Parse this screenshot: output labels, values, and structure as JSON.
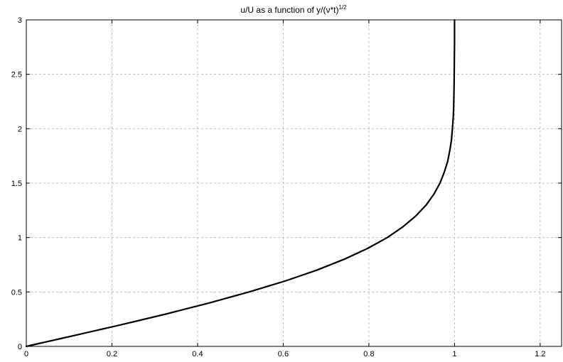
{
  "chart_data": {
    "type": "line",
    "title_main": "u/U as a function of y/(ν*t)",
    "title_sup": "1/2",
    "xlabel": "",
    "ylabel": "",
    "xlim": [
      0,
      1.25
    ],
    "ylim": [
      0,
      3
    ],
    "xticks": [
      0,
      0.2,
      0.4,
      0.6,
      0.8,
      1,
      1.2
    ],
    "xtick_labels": [
      "0",
      "0.2",
      "0.4",
      "0.6",
      "0.8",
      "1",
      "1.2"
    ],
    "yticks": [
      0,
      0.5,
      1,
      1.5,
      2,
      2.5,
      3
    ],
    "ytick_labels": [
      "0",
      "0.5",
      "1",
      "1.5",
      "2",
      "2.5",
      "3"
    ],
    "grid": true,
    "line_color": "#000000",
    "grid_color": "#b4b4b4",
    "series": [
      {
        "x": [
          0,
          0.112,
          0.223,
          0.329,
          0.428,
          0.52,
          0.604,
          0.678,
          0.742,
          0.797,
          0.843,
          0.88,
          0.91,
          0.934,
          0.952,
          0.966,
          0.976,
          0.984,
          0.989,
          0.993,
          0.995,
          0.997,
          0.998,
          0.999,
          0.9995,
          1.0,
          1.0
        ],
        "y": [
          0,
          0.1,
          0.2,
          0.3,
          0.4,
          0.5,
          0.6,
          0.7,
          0.8,
          0.9,
          1.0,
          1.1,
          1.2,
          1.3,
          1.4,
          1.5,
          1.6,
          1.7,
          1.8,
          1.9,
          2.0,
          2.1,
          2.2,
          2.4,
          2.6,
          2.8,
          3.0
        ]
      }
    ]
  }
}
